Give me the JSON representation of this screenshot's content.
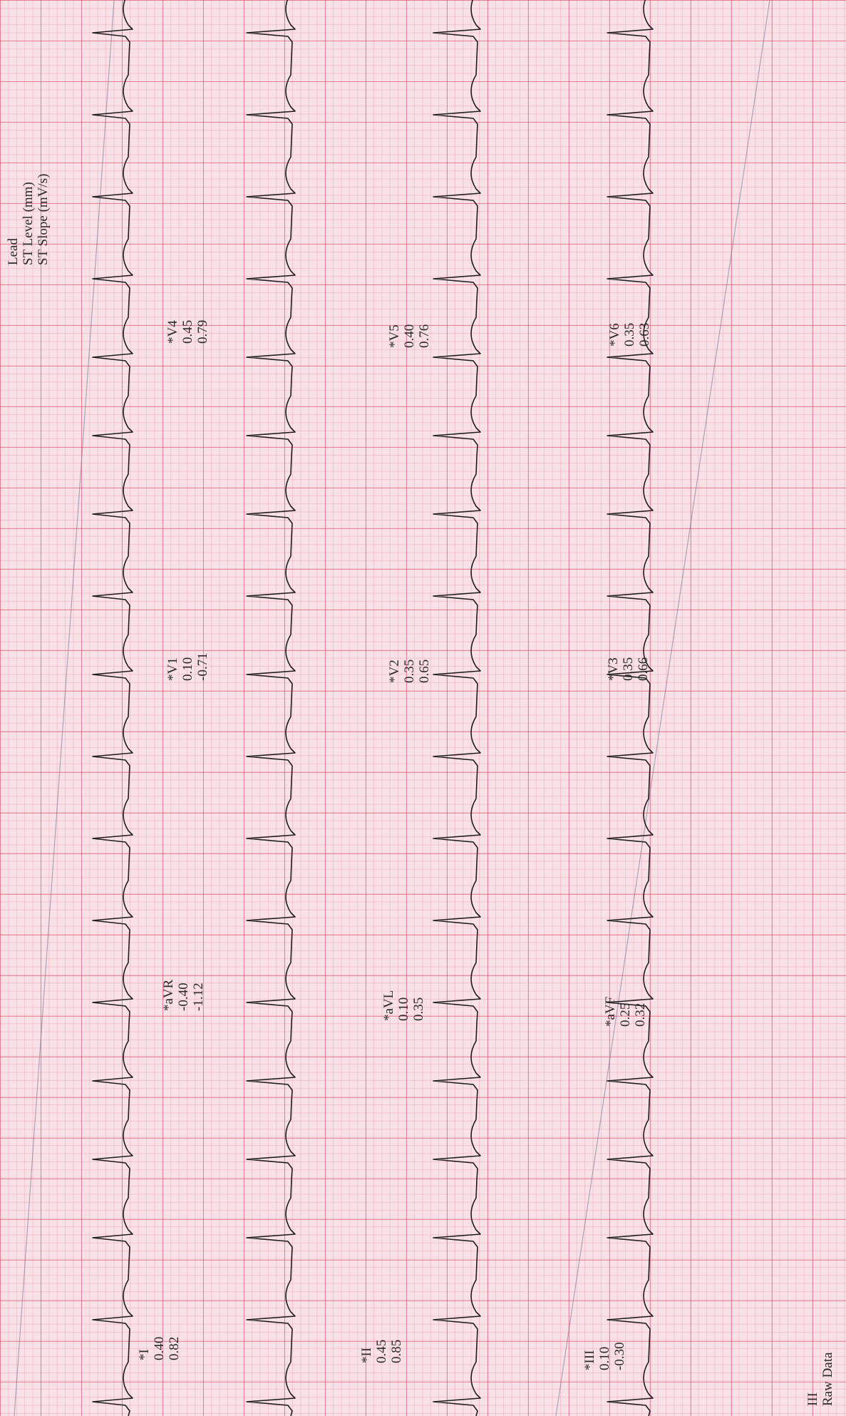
{
  "legend": {
    "line1": "Lead",
    "line2": "ST Level (mm)",
    "line3": "ST Slope (mV/s)"
  },
  "leads": [
    {
      "name": "*I",
      "level": "0.40",
      "slope": "0.82"
    },
    {
      "name": "*aVR",
      "level": "-0.40",
      "slope": "-1.12"
    },
    {
      "name": "*V1",
      "level": "0.10",
      "slope": "-0.71"
    },
    {
      "name": "*V4",
      "level": "0.45",
      "slope": "0.79"
    },
    {
      "name": "*II",
      "level": "0.45",
      "slope": "0.85"
    },
    {
      "name": "*aVL",
      "level": "0.10",
      "slope": "0.35"
    },
    {
      "name": "*V2",
      "level": "0.35",
      "slope": "0.65"
    },
    {
      "name": "*V5",
      "level": "0.40",
      "slope": "0.76"
    },
    {
      "name": "*III",
      "level": "0.10",
      "slope": "-0.30"
    },
    {
      "name": "*aVF",
      "level": "0.25",
      "slope": "0.32"
    },
    {
      "name": "*V3",
      "level": "0.35",
      "slope": "0.66"
    },
    {
      "name": "*V6",
      "level": "0.35",
      "slope": "0.63"
    }
  ],
  "rhythm": {
    "lead": "III",
    "caption": "Raw Data"
  },
  "colors": {
    "grid_major": "#dc4664",
    "paper": "#f8e2e7",
    "trace": "#1e1e1e"
  }
}
